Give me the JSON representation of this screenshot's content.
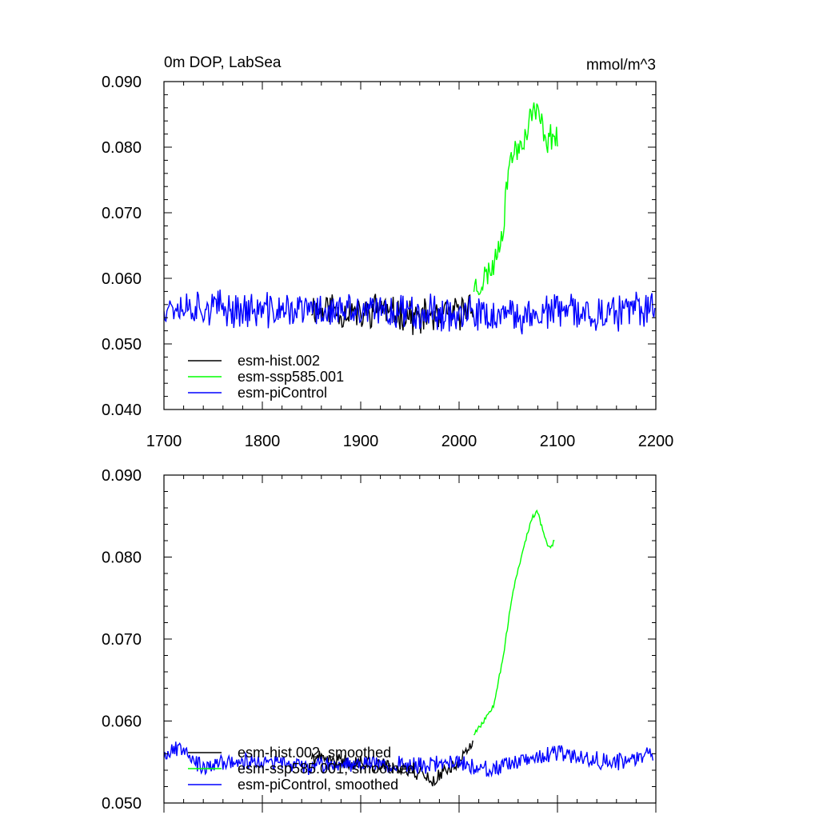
{
  "chart_data": [
    {
      "type": "line",
      "title": "0m DOP, LabSea",
      "units": "mmol/m^3",
      "xlim": [
        1700,
        2200
      ],
      "ylim": [
        0.04,
        0.09
      ],
      "xticks": [
        1700,
        1800,
        1900,
        2000,
        2100,
        2200
      ],
      "xtick_labels": [
        "1700",
        "1800",
        "1900",
        "2000",
        "2100",
        "2200"
      ],
      "yticks": [
        0.04,
        0.05,
        0.06,
        0.07,
        0.08,
        0.09
      ],
      "ytick_labels": [
        "0.040",
        "0.050",
        "0.060",
        "0.070",
        "0.080",
        "0.090"
      ],
      "legend_position": "bottom-left",
      "series": [
        {
          "name": "esm-hist.002",
          "color": "#000000",
          "x_start": 1850,
          "x_end": 2014,
          "keypoints": [
            [
              1850,
              0.0558
            ],
            [
              1860,
              0.0548
            ],
            [
              1870,
              0.056
            ],
            [
              1880,
              0.0545
            ],
            [
              1890,
              0.0552
            ],
            [
              1900,
              0.054
            ],
            [
              1910,
              0.055
            ],
            [
              1920,
              0.056
            ],
            [
              1930,
              0.0545
            ],
            [
              1940,
              0.0548
            ],
            [
              1950,
              0.0542
            ],
            [
              1960,
              0.0538
            ],
            [
              1970,
              0.0545
            ],
            [
              1980,
              0.0535
            ],
            [
              1990,
              0.0548
            ],
            [
              2000,
              0.0545
            ],
            [
              2010,
              0.056
            ],
            [
              2014,
              0.0565
            ]
          ],
          "noise": 0.0022,
          "seed": 11
        },
        {
          "name": "esm-ssp585.001",
          "color": "#00ff00",
          "x_start": 2015,
          "x_end": 2100,
          "keypoints": [
            [
              2015,
              0.059
            ],
            [
              2020,
              0.0585
            ],
            [
              2025,
              0.06
            ],
            [
              2030,
              0.061
            ],
            [
              2035,
              0.062
            ],
            [
              2040,
              0.065
            ],
            [
              2045,
              0.068
            ],
            [
              2050,
              0.077
            ],
            [
              2055,
              0.079
            ],
            [
              2060,
              0.08
            ],
            [
              2065,
              0.081
            ],
            [
              2070,
              0.083
            ],
            [
              2075,
              0.086
            ],
            [
              2080,
              0.085
            ],
            [
              2085,
              0.083
            ],
            [
              2090,
              0.081
            ],
            [
              2095,
              0.082
            ],
            [
              2100,
              0.0815
            ]
          ],
          "noise": 0.0018,
          "seed": 23
        },
        {
          "name": "esm-piControl",
          "color": "#0000ff",
          "x_start": 1700,
          "x_end": 2199,
          "keypoints": [
            [
              1700,
              0.056
            ],
            [
              1750,
              0.0555
            ],
            [
              1800,
              0.055
            ],
            [
              1850,
              0.0552
            ],
            [
              1900,
              0.0548
            ],
            [
              1950,
              0.0552
            ],
            [
              2000,
              0.0545
            ],
            [
              2050,
              0.054
            ],
            [
              2100,
              0.055
            ],
            [
              2150,
              0.0545
            ],
            [
              2199,
              0.0555
            ]
          ],
          "noise": 0.0024,
          "seed": 37
        }
      ]
    },
    {
      "type": "line",
      "title": "",
      "units": "",
      "xlim": [
        1700,
        2200
      ],
      "ylim": [
        0.05,
        0.09
      ],
      "xticks": [
        1700,
        1800,
        1900,
        2000,
        2100,
        2200
      ],
      "xtick_labels": [],
      "yticks": [
        0.05,
        0.06,
        0.07,
        0.08,
        0.09
      ],
      "ytick_labels": [
        "0.050",
        "0.060",
        "0.070",
        "0.080",
        "0.090"
      ],
      "legend_position": "bottom-left",
      "series": [
        {
          "name": "esm-hist.002, smoothed",
          "color": "#000000",
          "x_start": 1850,
          "x_end": 2014,
          "keypoints": [
            [
              1850,
              0.0555
            ],
            [
              1870,
              0.0552
            ],
            [
              1890,
              0.055
            ],
            [
              1910,
              0.0548
            ],
            [
              1930,
              0.0545
            ],
            [
              1950,
              0.054
            ],
            [
              1965,
              0.0535
            ],
            [
              1975,
              0.0525
            ],
            [
              1985,
              0.054
            ],
            [
              2000,
              0.055
            ],
            [
              2010,
              0.0565
            ],
            [
              2014,
              0.0575
            ]
          ],
          "noise": 0.0008,
          "seed": 41
        },
        {
          "name": "esm-ssp585.001, smoothed",
          "color": "#00ff00",
          "x_start": 2015,
          "x_end": 2097,
          "keypoints": [
            [
              2015,
              0.0585
            ],
            [
              2025,
              0.06
            ],
            [
              2035,
              0.062
            ],
            [
              2045,
              0.068
            ],
            [
              2055,
              0.076
            ],
            [
              2065,
              0.081
            ],
            [
              2075,
              0.085
            ],
            [
              2080,
              0.0855
            ],
            [
              2088,
              0.082
            ],
            [
              2092,
              0.081
            ],
            [
              2097,
              0.082
            ]
          ],
          "noise": 0.0003,
          "seed": 53
        },
        {
          "name": "esm-piControl, smoothed",
          "color": "#0000ff",
          "x_start": 1700,
          "x_end": 2197,
          "keypoints": [
            [
              1700,
              0.056
            ],
            [
              1720,
              0.057
            ],
            [
              1740,
              0.054
            ],
            [
              1760,
              0.055
            ],
            [
              1800,
              0.055
            ],
            [
              1850,
              0.0545
            ],
            [
              1900,
              0.055
            ],
            [
              1950,
              0.0545
            ],
            [
              2000,
              0.055
            ],
            [
              2030,
              0.054
            ],
            [
              2050,
              0.0545
            ],
            [
              2080,
              0.0555
            ],
            [
              2100,
              0.056
            ],
            [
              2130,
              0.0555
            ],
            [
              2160,
              0.055
            ],
            [
              2197,
              0.056
            ]
          ],
          "noise": 0.0009,
          "seed": 67
        }
      ]
    }
  ]
}
